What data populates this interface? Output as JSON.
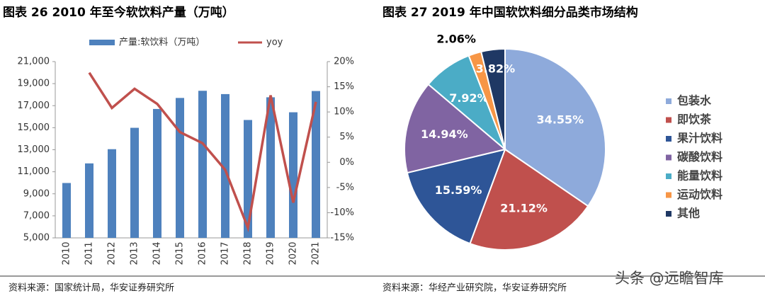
{
  "chart_data": [
    {
      "type": "bar",
      "title": "图表 26 2010 年至今软饮料产量（万吨）",
      "categories": [
        "2010",
        "2011",
        "2012",
        "2013",
        "2014",
        "2015",
        "2016",
        "2017",
        "2018",
        "2019",
        "2020",
        "2021"
      ],
      "series": [
        {
          "name": "产量:软饮料（万吨）",
          "type": "bar",
          "color": "#4e81bd",
          "values": [
            9980,
            11760,
            13050,
            14990,
            16700,
            17700,
            18350,
            18050,
            15700,
            17760,
            16400,
            18330
          ]
        },
        {
          "name": "yoy",
          "type": "line",
          "axis": "y2",
          "color": "#c0504d",
          "values": [
            null,
            17.8,
            10.8,
            14.6,
            11.6,
            6.0,
            3.8,
            -1.5,
            -13.0,
            13.3,
            -8.0,
            12.0
          ]
        }
      ],
      "ylim": [
        5000,
        21000
      ],
      "yticks": [
        {
          "value": 5000,
          "label": "5,000"
        },
        {
          "value": 7000,
          "label": "7,000"
        },
        {
          "value": 9000,
          "label": "9,000"
        },
        {
          "value": 11000,
          "label": "11,000"
        },
        {
          "value": 13000,
          "label": "13,000"
        },
        {
          "value": 15000,
          "label": "15,000"
        },
        {
          "value": 17000,
          "label": "17,000"
        },
        {
          "value": 19000,
          "label": "19,000"
        },
        {
          "value": 21000,
          "label": "21,000"
        }
      ],
      "y2lim": [
        -15,
        20
      ],
      "y2ticks": [
        {
          "value": -15,
          "label": "-15%"
        },
        {
          "value": -10,
          "label": "-10%"
        },
        {
          "value": -5,
          "label": "-5%"
        },
        {
          "value": 0,
          "label": "0%"
        },
        {
          "value": 5,
          "label": "5%"
        },
        {
          "value": 10,
          "label": "10%"
        },
        {
          "value": 15,
          "label": "15%"
        },
        {
          "value": 20,
          "label": "20%"
        }
      ],
      "grid": false,
      "legend": "top",
      "source": "资料来源：国家统计局，华安证券研究所"
    },
    {
      "type": "pie",
      "title": "图表 27 2019 年中国软饮料细分品类市场结构",
      "categories": [
        "包装水",
        "即饮茶",
        "果汁饮料",
        "碳酸饮料",
        "能量饮料",
        "运动饮料",
        "其他"
      ],
      "values": [
        34.55,
        21.12,
        15.59,
        14.94,
        7.92,
        2.06,
        3.82
      ],
      "value_labels": [
        "34.55%",
        "21.12%",
        "15.59%",
        "14.94%",
        "7.92%",
        "2.06%",
        "3.82%"
      ],
      "colors": [
        "#8eaadb",
        "#c0504d",
        "#2e5597",
        "#8064a2",
        "#4bacc6",
        "#f79646",
        "#1f3864"
      ],
      "legend": "right",
      "source": "资料来源：华经产业研究院，华安证券研究所"
    }
  ],
  "watermark": "头条 @远瞻智库"
}
